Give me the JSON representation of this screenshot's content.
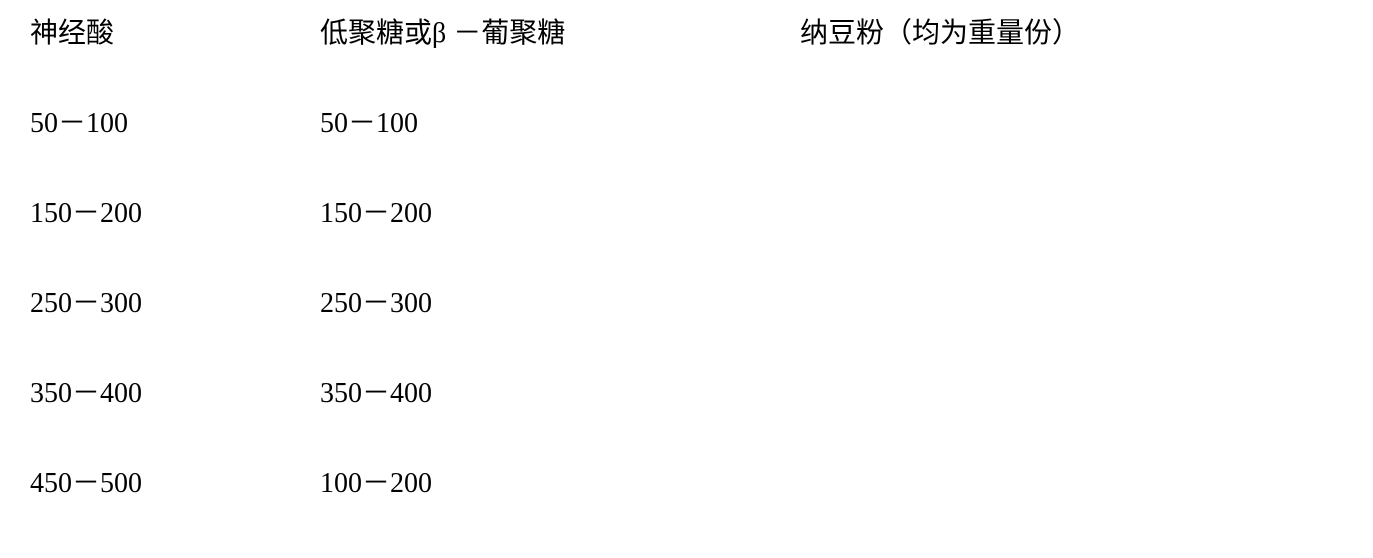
{
  "table": {
    "headers": {
      "col1": "神经酸",
      "col2": "低聚糖或β －葡聚糖",
      "col3": "纳豆粉（均为重量份）"
    },
    "rows": [
      {
        "col1": "50－100",
        "col2": "50－100",
        "col3": ""
      },
      {
        "col1": "150－200",
        "col2": "150－200",
        "col3": ""
      },
      {
        "col1": "250－300",
        "col2": "250－300",
        "col3": ""
      },
      {
        "col1": "350－400",
        "col2": "350－400",
        "col3": ""
      },
      {
        "col1": "450－500",
        "col2": "100－200",
        "col3": ""
      }
    ],
    "font_size": 28,
    "text_color": "#000000",
    "background_color": "#ffffff"
  }
}
